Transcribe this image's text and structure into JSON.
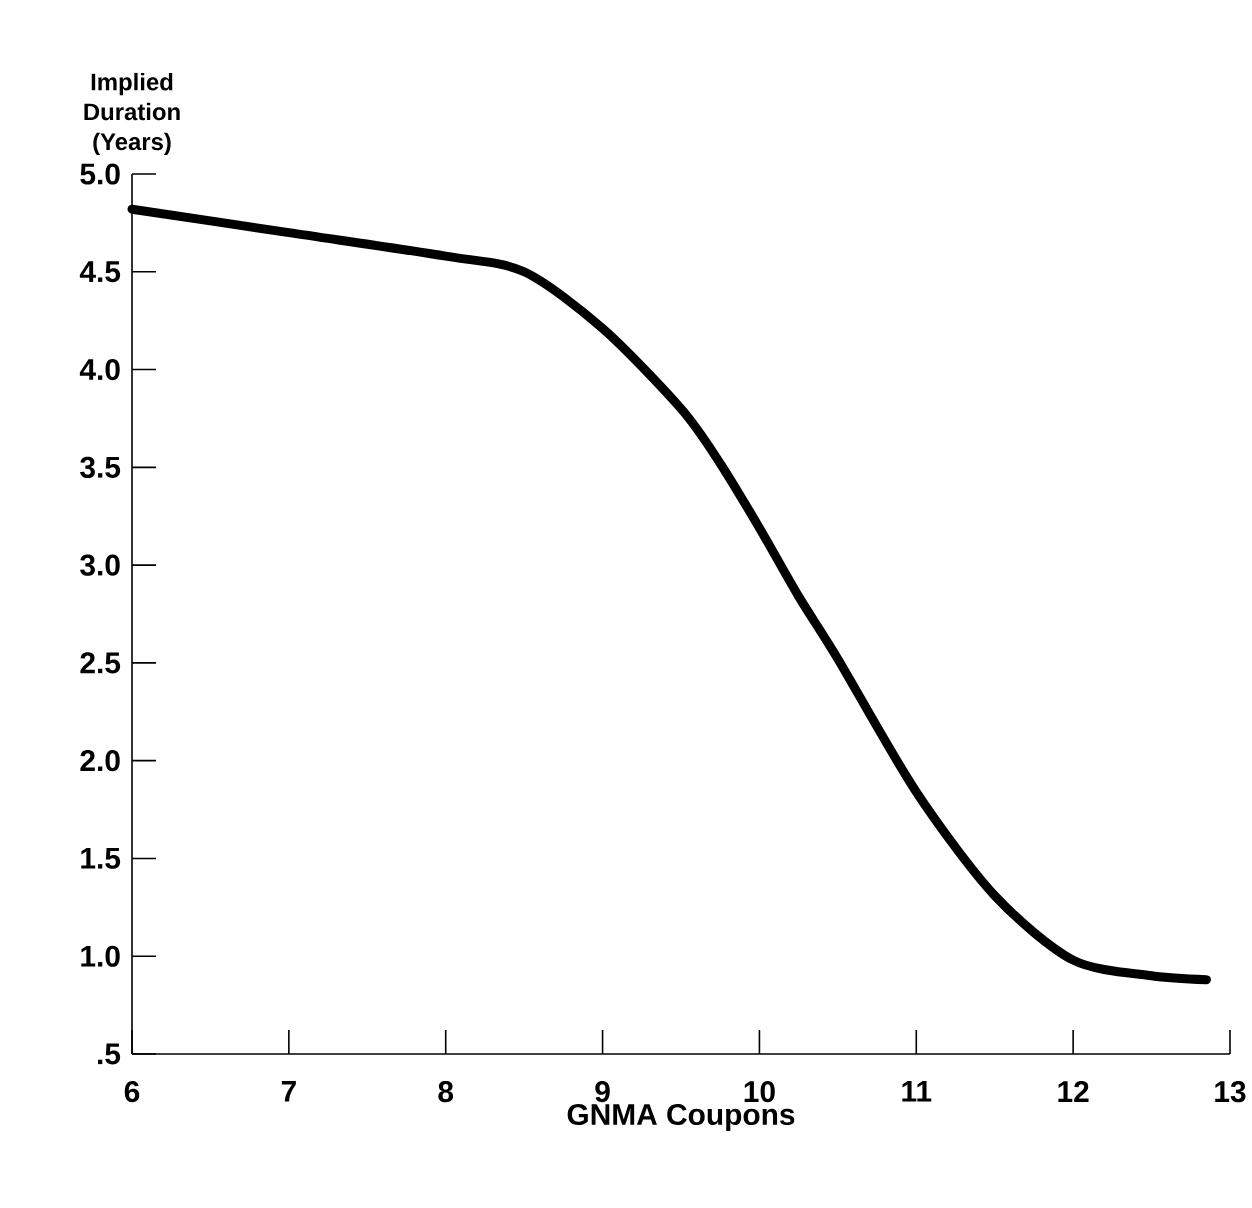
{
  "chart_data": {
    "type": "line",
    "xlabel": "GNMA Coupons",
    "ylabel": "Implied Duration (Years)",
    "xlim": [
      6,
      13
    ],
    "ylim": [
      0.5,
      5.0
    ],
    "xticks": [
      6,
      7,
      8,
      9,
      10,
      11,
      12,
      13
    ],
    "yticks": [
      {
        "value": 0.5,
        "label": ".5"
      },
      {
        "value": 1.0,
        "label": "1.0"
      },
      {
        "value": 1.5,
        "label": "1.5"
      },
      {
        "value": 2.0,
        "label": "2.0"
      },
      {
        "value": 2.5,
        "label": "2.5"
      },
      {
        "value": 3.0,
        "label": "3.0"
      },
      {
        "value": 3.5,
        "label": "3.5"
      },
      {
        "value": 4.0,
        "label": "4.0"
      },
      {
        "value": 4.5,
        "label": "4.5"
      },
      {
        "value": 5.0,
        "label": "5.0"
      }
    ],
    "series": [
      {
        "color": "#000000",
        "x": [
          6,
          7,
          8,
          8.5,
          9,
          9.5,
          9.75,
          10,
          10.25,
          10.5,
          11,
          11.5,
          12,
          12.5,
          12.85
        ],
        "values": [
          4.82,
          4.7,
          4.58,
          4.5,
          4.21,
          3.8,
          3.52,
          3.19,
          2.84,
          2.52,
          1.84,
          1.31,
          0.98,
          0.9,
          0.88
        ]
      }
    ],
    "grid": false,
    "marker": "none",
    "line_style": "solid"
  }
}
